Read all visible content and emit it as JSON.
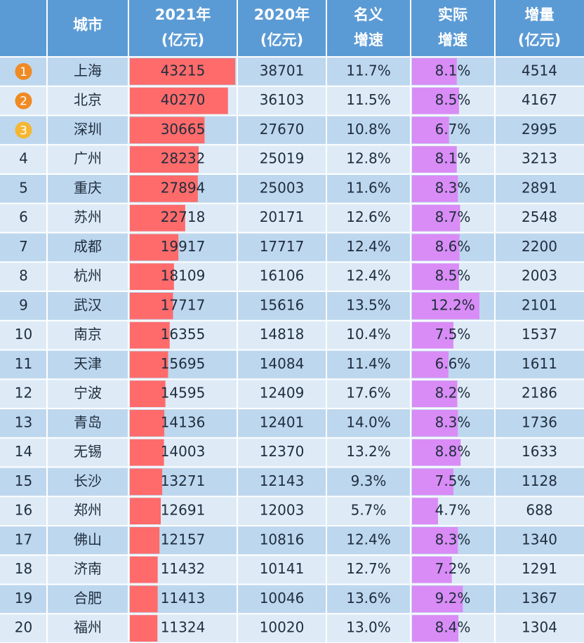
{
  "table": {
    "header": [
      [
        "城市"
      ],
      [
        "2021年",
        "(亿元)"
      ],
      [
        "2020年",
        "(亿元)"
      ],
      [
        "名义",
        "增速"
      ],
      [
        "实际",
        "增速"
      ],
      [
        "增量",
        "(亿元)"
      ]
    ],
    "rows": [
      [
        1,
        "上海",
        43215,
        38701,
        "11.7%",
        "8.1%",
        4514
      ],
      [
        2,
        "北京",
        40270,
        36103,
        "11.5%",
        "8.5%",
        4167
      ],
      [
        3,
        "深圳",
        30665,
        27670,
        "10.8%",
        "6.7%",
        2995
      ],
      [
        4,
        "广州",
        28232,
        25019,
        "12.8%",
        "8.1%",
        3213
      ],
      [
        5,
        "重庆",
        27894,
        25003,
        "11.6%",
        "8.3%",
        2891
      ],
      [
        6,
        "苏州",
        22718,
        20171,
        "12.6%",
        "8.7%",
        2548
      ],
      [
        7,
        "成都",
        19917,
        17717,
        "12.4%",
        "8.6%",
        2200
      ],
      [
        8,
        "杭州",
        18109,
        16106,
        "12.4%",
        "8.5%",
        2003
      ],
      [
        9,
        "武汉",
        17717,
        15616,
        "13.5%",
        "12.2%",
        2101
      ],
      [
        10,
        "南京",
        16355,
        14818,
        "10.4%",
        "7.5%",
        1537
      ],
      [
        11,
        "天津",
        15695,
        14084,
        "11.4%",
        "6.6%",
        1611
      ],
      [
        12,
        "宁波",
        14595,
        12409,
        "17.6%",
        "8.2%",
        2186
      ],
      [
        13,
        "青岛",
        14136,
        12401,
        "14.0%",
        "8.3%",
        1736
      ],
      [
        14,
        "无锡",
        14003,
        12370,
        "13.2%",
        "8.8%",
        1633
      ],
      [
        15,
        "长沙",
        13271,
        12143,
        "9.3%",
        "7.5%",
        1128
      ],
      [
        16,
        "郑州",
        12691,
        12003,
        "5.7%",
        "4.7%",
        688
      ],
      [
        17,
        "佛山",
        12157,
        10816,
        "12.4%",
        "8.3%",
        1340
      ],
      [
        18,
        "济南",
        11432,
        10141,
        "12.7%",
        "7.2%",
        1291
      ],
      [
        19,
        "合肥",
        11413,
        10046,
        "13.6%",
        "9.2%",
        1367
      ],
      [
        20,
        "福州",
        11324,
        10020,
        "13.0%",
        "8.4%",
        1304
      ]
    ]
  }
}
